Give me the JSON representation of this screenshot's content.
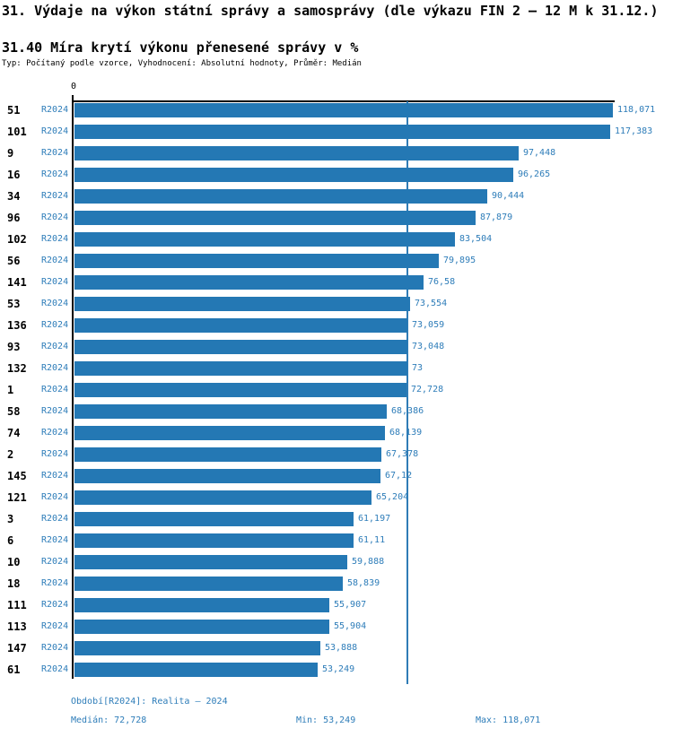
{
  "header": {
    "title": "31. Výdaje na výkon státní správy a samosprávy (dle výkazu FIN 2 – 12 M k 31.12.)",
    "subtitle": "31.40 Míra krytí výkonu přenesené správy v %",
    "meta": "Typ: Počítaný podle vzorce, Vyhodnocení: Absolutní hodnoty, Průměr: Medián"
  },
  "chart_data": {
    "type": "bar",
    "orientation": "horizontal",
    "title": "31.40 Míra krytí výkonu přenesené správy v %",
    "xlabel": "",
    "ylabel": "",
    "xlim": [
      0,
      118.071
    ],
    "grid": false,
    "axis_origin_label": "0",
    "bar_color": "#2478b4",
    "label_color": "#2e7db9",
    "median_line_value": 72.728,
    "rows": [
      {
        "id": "51",
        "period": "R2024",
        "value": 118.071,
        "value_label": "118,071"
      },
      {
        "id": "101",
        "period": "R2024",
        "value": 117.383,
        "value_label": "117,383"
      },
      {
        "id": "9",
        "period": "R2024",
        "value": 97.448,
        "value_label": "97,448"
      },
      {
        "id": "16",
        "period": "R2024",
        "value": 96.265,
        "value_label": "96,265"
      },
      {
        "id": "34",
        "period": "R2024",
        "value": 90.444,
        "value_label": "90,444"
      },
      {
        "id": "96",
        "period": "R2024",
        "value": 87.879,
        "value_label": "87,879"
      },
      {
        "id": "102",
        "period": "R2024",
        "value": 83.504,
        "value_label": "83,504"
      },
      {
        "id": "56",
        "period": "R2024",
        "value": 79.895,
        "value_label": "79,895"
      },
      {
        "id": "141",
        "period": "R2024",
        "value": 76.58,
        "value_label": "76,58"
      },
      {
        "id": "53",
        "period": "R2024",
        "value": 73.554,
        "value_label": "73,554"
      },
      {
        "id": "136",
        "period": "R2024",
        "value": 73.059,
        "value_label": "73,059"
      },
      {
        "id": "93",
        "period": "R2024",
        "value": 73.048,
        "value_label": "73,048"
      },
      {
        "id": "132",
        "period": "R2024",
        "value": 73.0,
        "value_label": "73"
      },
      {
        "id": "1",
        "period": "R2024",
        "value": 72.728,
        "value_label": "72,728"
      },
      {
        "id": "58",
        "period": "R2024",
        "value": 68.386,
        "value_label": "68,386"
      },
      {
        "id": "74",
        "period": "R2024",
        "value": 68.139,
        "value_label": "68,139"
      },
      {
        "id": "2",
        "period": "R2024",
        "value": 67.378,
        "value_label": "67,378"
      },
      {
        "id": "145",
        "period": "R2024",
        "value": 67.12,
        "value_label": "67,12"
      },
      {
        "id": "121",
        "period": "R2024",
        "value": 65.204,
        "value_label": "65,204"
      },
      {
        "id": "3",
        "period": "R2024",
        "value": 61.197,
        "value_label": "61,197"
      },
      {
        "id": "6",
        "period": "R2024",
        "value": 61.11,
        "value_label": "61,11"
      },
      {
        "id": "10",
        "period": "R2024",
        "value": 59.888,
        "value_label": "59,888"
      },
      {
        "id": "18",
        "period": "R2024",
        "value": 58.839,
        "value_label": "58,839"
      },
      {
        "id": "111",
        "period": "R2024",
        "value": 55.907,
        "value_label": "55,907"
      },
      {
        "id": "113",
        "period": "R2024",
        "value": 55.904,
        "value_label": "55,904"
      },
      {
        "id": "147",
        "period": "R2024",
        "value": 53.888,
        "value_label": "53,888"
      },
      {
        "id": "61",
        "period": "R2024",
        "value": 53.249,
        "value_label": "53,249"
      }
    ]
  },
  "footer": {
    "period_line": "Období[R2024]: Realita – 2024",
    "median": "Medián: 72,728",
    "min": "Min: 53,249",
    "max": "Max: 118,071"
  }
}
